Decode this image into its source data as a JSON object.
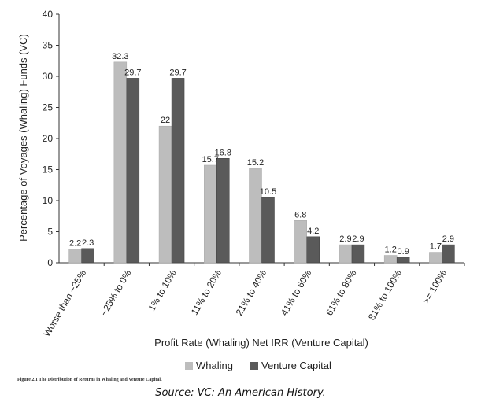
{
  "chart_data": {
    "type": "bar",
    "categories": [
      "Worse than −25%",
      "−25% to 0%",
      "1% to 10%",
      "11% to 20%",
      "21% to 40%",
      "41% to 60%",
      "61% to 80%",
      "81% to 100%",
      ">= 100%"
    ],
    "series": [
      {
        "name": "Whaling",
        "values": [
          2.2,
          32.3,
          22,
          15.7,
          15.2,
          6.8,
          2.9,
          1.2,
          1.7
        ],
        "labels": [
          "2.2",
          "32.3",
          "22",
          "15.7",
          "15.2",
          "6.8",
          "2.9",
          "1.2",
          "1.7"
        ],
        "color": "#bdbdbd"
      },
      {
        "name": "Venture Capital",
        "values": [
          2.3,
          29.7,
          29.7,
          16.8,
          10.5,
          4.2,
          2.9,
          0.9,
          2.9
        ],
        "labels": [
          "2.3",
          "29.7",
          "29.7",
          "16.8",
          "10.5",
          "4.2",
          "2.9",
          "0.9",
          "2.9"
        ],
        "color": "#5a5a5a"
      }
    ],
    "xlabel": "Profit Rate (Whaling) Net IRR (Venture Capital)",
    "ylabel": "Percentage of Voyages (Whaling) Funds (VC)",
    "ylim": [
      0,
      40
    ],
    "yticks": [
      "0",
      "5",
      "10",
      "15",
      "20",
      "25",
      "30",
      "35",
      "40"
    ],
    "grid": false,
    "legend": "bottom-center"
  },
  "caption": "Figure 2.1 The Distribution of Returns in Whaling and Venture Capital.",
  "source": "Source: VC: An American History."
}
